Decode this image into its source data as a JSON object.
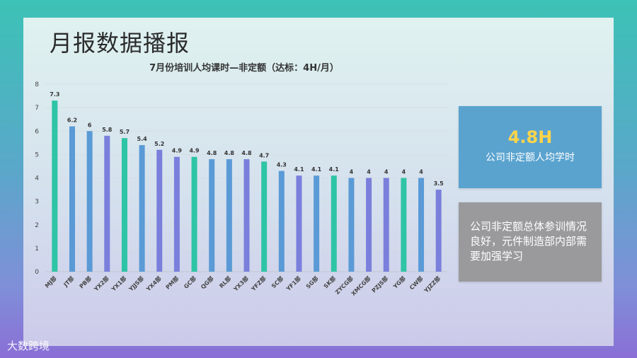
{
  "slide_title": "月报数据播报",
  "summary_card": {
    "value": "4.8H",
    "caption": "公司非定额人均学时"
  },
  "note_card": {
    "text": "公司非定额总体参训情况良好，元件制造部内部需要加强学习"
  },
  "watermark": "大数跨境",
  "colors": {
    "teal": "#2ec4a6",
    "blue": "#5a9ad6",
    "purple": "#7a7fdc"
  },
  "chart_data": {
    "type": "bar",
    "title": "7月份培训人均课时—非定额（达标：4H/月）",
    "xlabel": "",
    "ylabel": "",
    "ylim": [
      0,
      8
    ],
    "yticks": [
      0,
      1,
      2,
      3,
      4,
      5,
      6,
      7,
      8
    ],
    "grid": true,
    "categories": [
      "MJ部",
      "JT部",
      "PB部",
      "YX2部",
      "YX1部",
      "YJJS部",
      "YX4部",
      "PM部",
      "GC部",
      "QG部",
      "RL部",
      "YX3部",
      "YFZ部",
      "SC部",
      "YF1部",
      "SG部",
      "SK部",
      "ZYCG部",
      "XMCG部",
      "PZJS部",
      "YG部",
      "CW部",
      "YJZZ部"
    ],
    "values": [
      7.3,
      6.2,
      6,
      5.8,
      5.7,
      5.4,
      5.2,
      4.9,
      4.9,
      4.8,
      4.8,
      4.8,
      4.7,
      4.3,
      4.1,
      4.1,
      4.1,
      4,
      4,
      4,
      4,
      4,
      3.5
    ],
    "value_labels": [
      "7.3",
      "6.2",
      "6",
      "5.8",
      "5.7",
      "5.4",
      "5.2",
      "4.9",
      "4.9",
      "4.8",
      "4.8",
      "4.8",
      "4.7",
      "4.3",
      "4.1",
      "4.1",
      "4.1",
      "4",
      "4",
      "4",
      "4",
      "4",
      "3.5"
    ],
    "bar_colors": [
      "teal",
      "blue",
      "blue",
      "purple",
      "teal",
      "blue",
      "purple",
      "purple",
      "teal",
      "blue",
      "blue",
      "purple",
      "teal",
      "blue",
      "purple",
      "blue",
      "teal",
      "blue",
      "purple",
      "purple",
      "teal",
      "blue",
      "purple"
    ]
  }
}
